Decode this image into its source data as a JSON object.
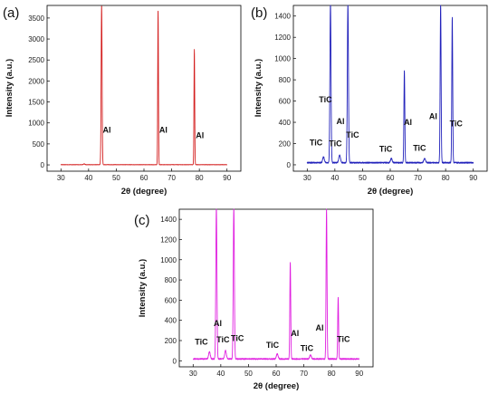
{
  "chart_data": [
    {
      "panel_label": "(a)",
      "type": "line",
      "xlabel": "2θ (degree)",
      "ylabel": "Intensity (a.u.)",
      "xlim": [
        25,
        95
      ],
      "ylim": [
        -150,
        3800
      ],
      "xticks": [
        30,
        40,
        50,
        60,
        70,
        80,
        90
      ],
      "yticks": [
        0,
        500,
        1000,
        1500,
        2000,
        2500,
        3000,
        3500
      ],
      "color": "#d42020",
      "baseline": 5,
      "noise": 4,
      "x_range": [
        30,
        90
      ],
      "peaks": [
        {
          "x": 38.4,
          "h": 20,
          "w": 0.25
        },
        {
          "x": 44.7,
          "h": 3800,
          "w": 0.17
        },
        {
          "x": 65.1,
          "h": 3700,
          "w": 0.13
        },
        {
          "x": 78.2,
          "h": 2750,
          "w": 0.13
        }
      ],
      "annotations": [
        {
          "text": "Al",
          "x": 46.6,
          "y": 770
        },
        {
          "text": "Al",
          "x": 67.0,
          "y": 770
        },
        {
          "text": "Al",
          "x": 80.2,
          "y": 640
        }
      ]
    },
    {
      "panel_label": "(b)",
      "type": "line",
      "xlabel": "2θ (degree)",
      "ylabel": "Intensity (a.u.)",
      "xlim": [
        25,
        95
      ],
      "ylim": [
        -60,
        1500
      ],
      "xticks": [
        30,
        40,
        50,
        60,
        70,
        80,
        90
      ],
      "yticks": [
        0,
        200,
        400,
        600,
        800,
        1000,
        1200,
        1400
      ],
      "color": "#2222bb",
      "baseline": 20,
      "noise": 6,
      "x_range": [
        30,
        90
      ],
      "peaks": [
        {
          "x": 35.9,
          "h": 55,
          "w": 0.3
        },
        {
          "x": 38.4,
          "h": 1500,
          "w": 0.2
        },
        {
          "x": 41.7,
          "h": 70,
          "w": 0.3
        },
        {
          "x": 44.7,
          "h": 1500,
          "w": 0.2
        },
        {
          "x": 60.4,
          "h": 40,
          "w": 0.3
        },
        {
          "x": 65.1,
          "h": 870,
          "w": 0.16
        },
        {
          "x": 72.4,
          "h": 40,
          "w": 0.3
        },
        {
          "x": 78.2,
          "h": 1500,
          "w": 0.17
        },
        {
          "x": 82.4,
          "h": 1370,
          "w": 0.16
        }
      ],
      "annotations": [
        {
          "text": "TiC",
          "x": 36.6,
          "y": 590
        },
        {
          "text": "TiC",
          "x": 33.2,
          "y": 185
        },
        {
          "text": "TiC",
          "x": 40.2,
          "y": 175
        },
        {
          "text": "Al",
          "x": 42.0,
          "y": 385
        },
        {
          "text": "TiC",
          "x": 46.4,
          "y": 255
        },
        {
          "text": "TiC",
          "x": 58.4,
          "y": 125
        },
        {
          "text": "Al",
          "x": 66.4,
          "y": 375
        },
        {
          "text": "TiC",
          "x": 70.6,
          "y": 130
        },
        {
          "text": "Al",
          "x": 75.5,
          "y": 430
        },
        {
          "text": "TiC",
          "x": 83.8,
          "y": 360
        }
      ]
    },
    {
      "panel_label": "(c)",
      "type": "line",
      "xlabel": "2θ (degree)",
      "ylabel": "Intensity (a.u.)",
      "xlim": [
        25,
        95
      ],
      "ylim": [
        -60,
        1500
      ],
      "xticks": [
        30,
        40,
        50,
        60,
        70,
        80,
        90
      ],
      "yticks": [
        0,
        200,
        400,
        600,
        800,
        1000,
        1200,
        1400
      ],
      "color": "#e020e0",
      "baseline": 18,
      "noise": 6,
      "x_range": [
        30,
        90
      ],
      "peaks": [
        {
          "x": 35.9,
          "h": 70,
          "w": 0.3
        },
        {
          "x": 38.4,
          "h": 1500,
          "w": 0.2
        },
        {
          "x": 41.7,
          "h": 85,
          "w": 0.3
        },
        {
          "x": 44.7,
          "h": 1500,
          "w": 0.2
        },
        {
          "x": 60.4,
          "h": 50,
          "w": 0.3
        },
        {
          "x": 65.1,
          "h": 960,
          "w": 0.16
        },
        {
          "x": 72.4,
          "h": 40,
          "w": 0.3
        },
        {
          "x": 78.2,
          "h": 1480,
          "w": 0.17
        },
        {
          "x": 82.4,
          "h": 610,
          "w": 0.16
        }
      ],
      "annotations": [
        {
          "text": "TiC",
          "x": 33.0,
          "y": 160
        },
        {
          "text": "Al",
          "x": 38.9,
          "y": 345
        },
        {
          "text": "TiC",
          "x": 40.8,
          "y": 180
        },
        {
          "text": "TiC",
          "x": 46.0,
          "y": 195
        },
        {
          "text": "TiC",
          "x": 58.7,
          "y": 130
        },
        {
          "text": "Al",
          "x": 66.8,
          "y": 245
        },
        {
          "text": "TiC",
          "x": 71.1,
          "y": 95
        },
        {
          "text": "Al",
          "x": 75.7,
          "y": 300
        },
        {
          "text": "TiC",
          "x": 84.3,
          "y": 185
        }
      ]
    }
  ]
}
